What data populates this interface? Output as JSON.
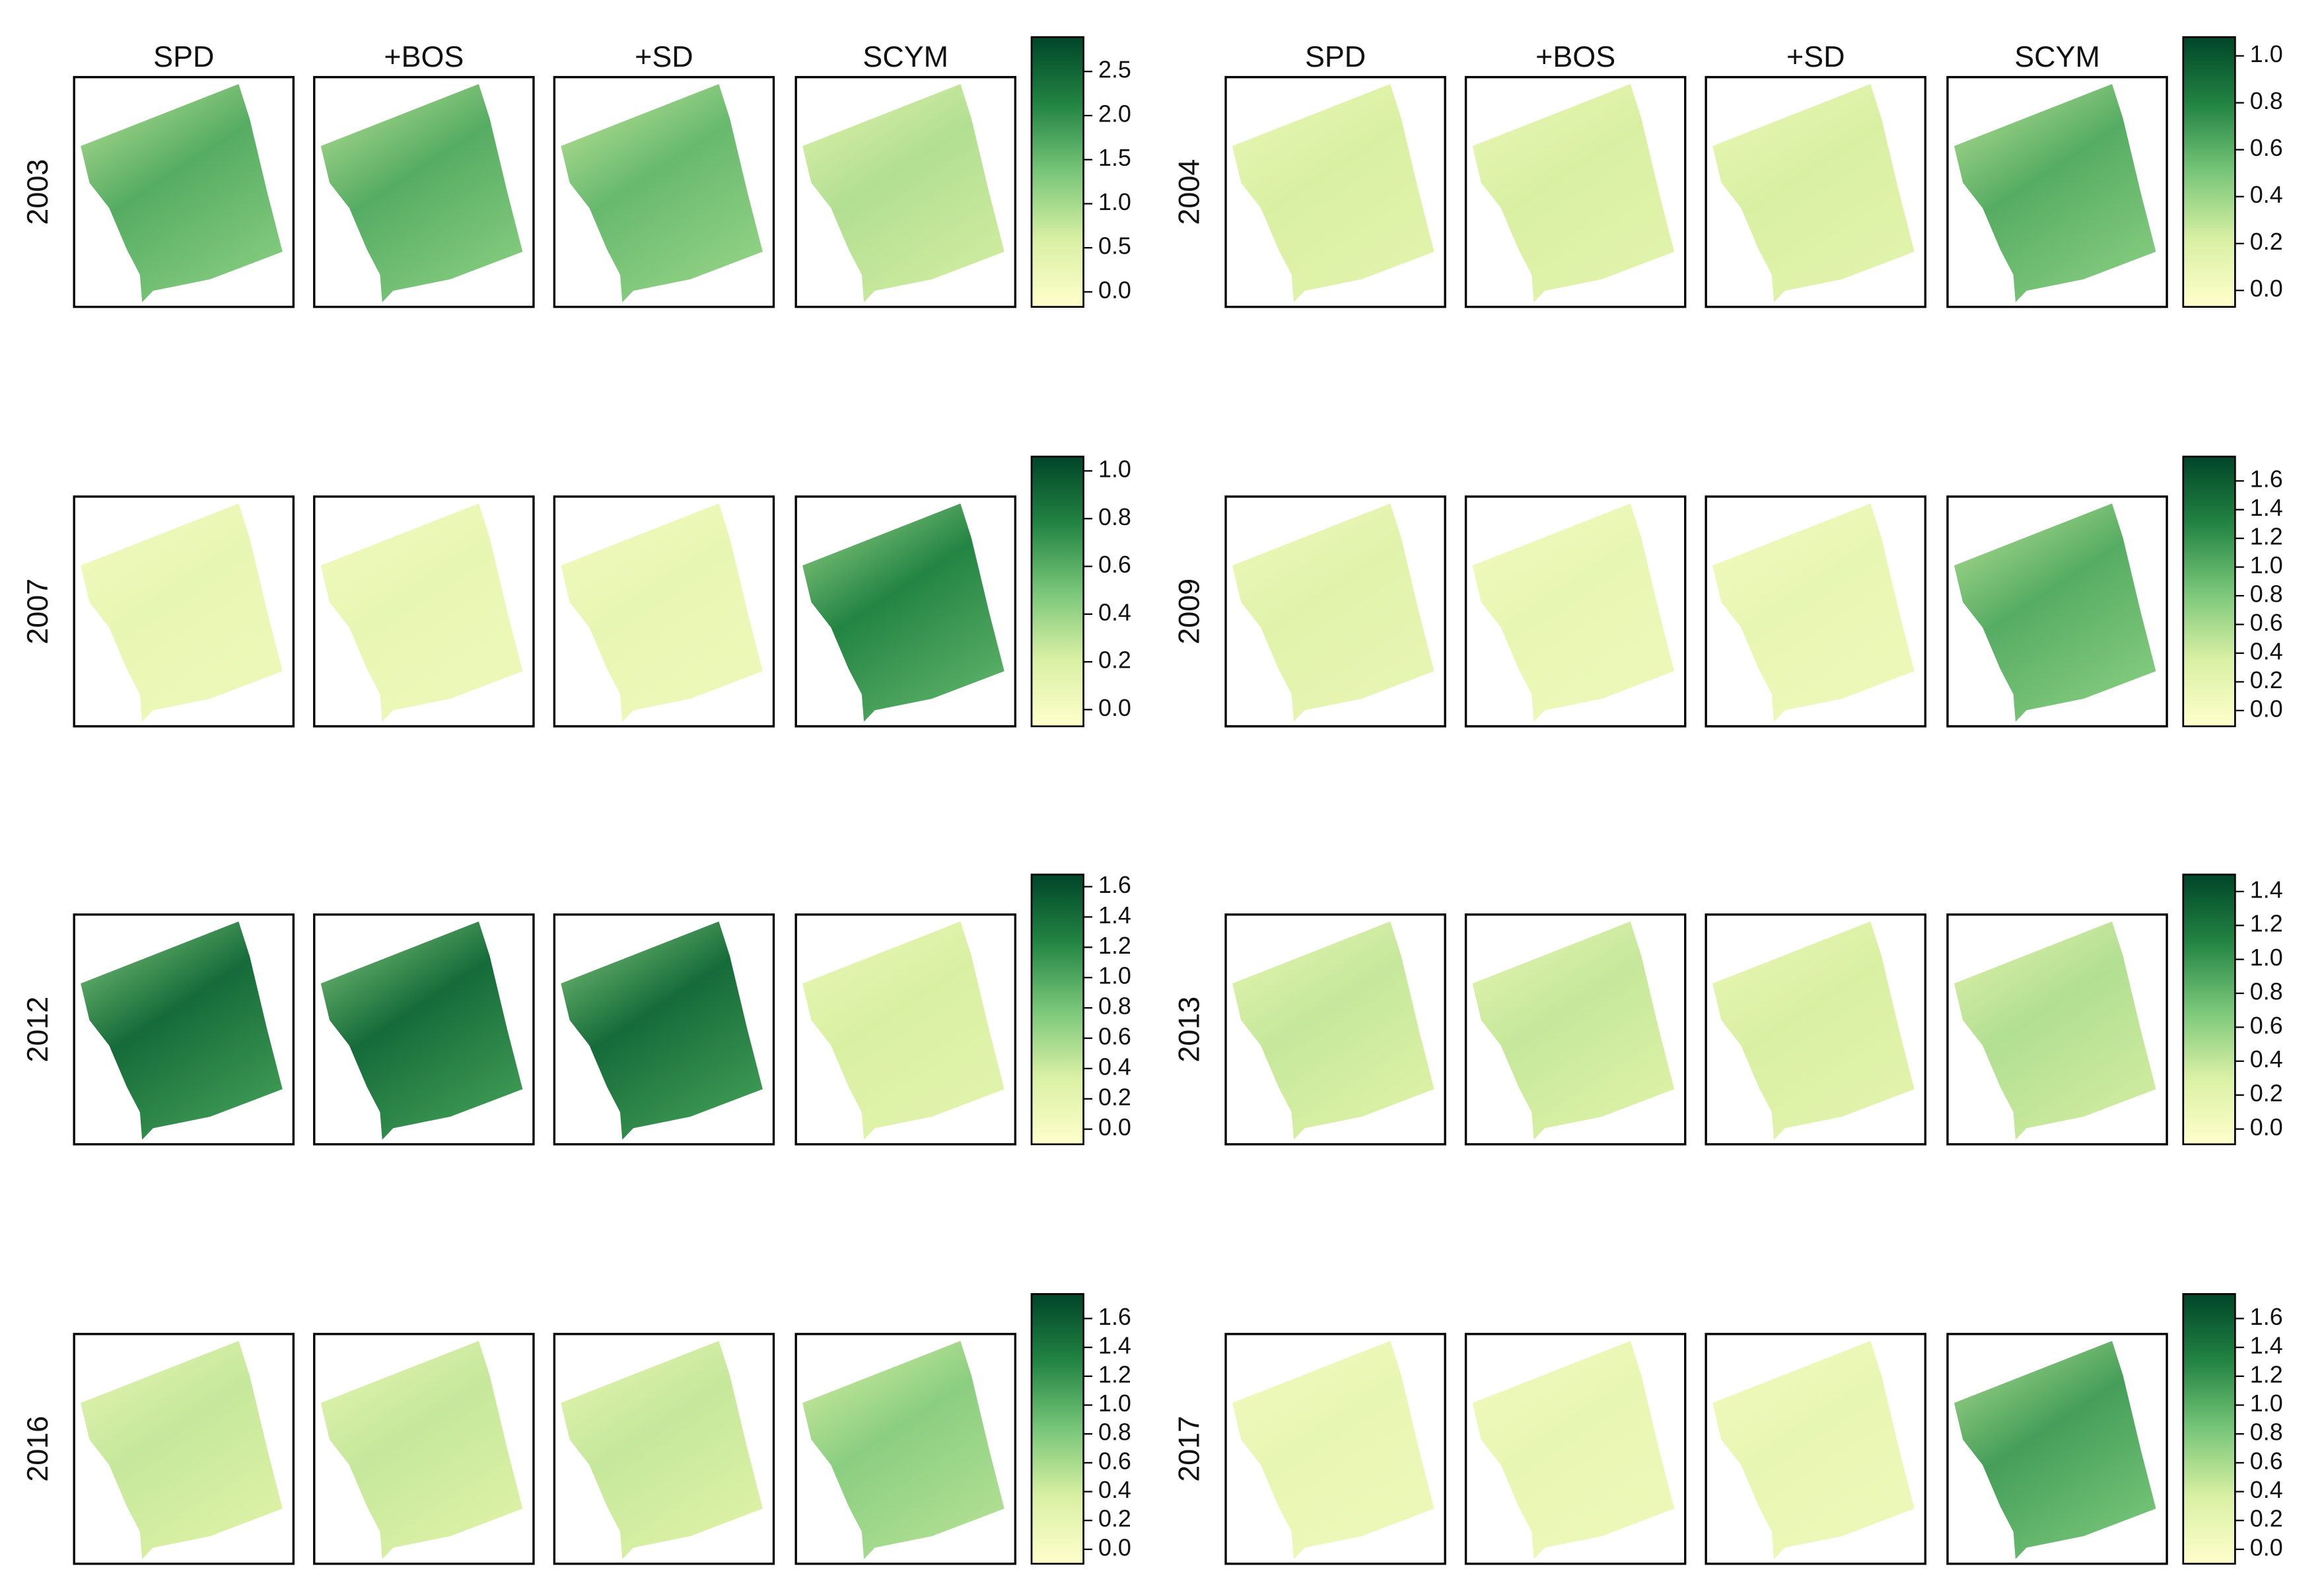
{
  "groups": [
    {
      "column_headers": [
        "SPD",
        "+BOS",
        "+SD",
        "SCYM"
      ],
      "rows": [
        {
          "year": "2003",
          "colorbar": {
            "lim": [
              -0.17,
              2.89
            ],
            "ticks": [
              {
                "value": 0,
                "label": "0.0"
              },
              0.5,
              {
                "value": 1,
                "label": "1.0"
              },
              1.5,
              {
                "value": 2,
                "label": "2.0"
              },
              2.5
            ]
          }
        },
        {
          "year": "2007",
          "colorbar": {
            "lim": [
              -0.07,
              1.06
            ],
            "ticks": [
              {
                "value": 0,
                "label": "0.0"
              },
              0.2,
              0.4,
              0.6,
              0.8,
              {
                "value": 1,
                "label": "1.0"
              }
            ]
          }
        },
        {
          "year": "2012",
          "colorbar": {
            "lim": [
              -0.1,
              1.68
            ],
            "ticks": [
              {
                "value": 0,
                "label": "0.0"
              },
              0.2,
              0.4,
              0.6,
              0.8,
              {
                "value": 1,
                "label": "1.0"
              },
              1.2,
              1.4,
              1.6
            ]
          }
        },
        {
          "year": "2016",
          "colorbar": {
            "lim": [
              -0.1,
              1.77
            ],
            "ticks": [
              {
                "value": 0,
                "label": "0.0"
              },
              0.2,
              0.4,
              0.6,
              0.8,
              {
                "value": 1,
                "label": "1.0"
              },
              1.2,
              1.4,
              1.6
            ]
          }
        }
      ]
    },
    {
      "column_headers": [
        "SPD",
        "+BOS",
        "+SD",
        "SCYM"
      ],
      "rows": [
        {
          "year": "2004",
          "colorbar": {
            "lim": [
              -0.07,
              1.08
            ],
            "ticks": [
              {
                "value": 0,
                "label": "0.0"
              },
              0.2,
              0.4,
              0.6,
              0.8,
              {
                "value": 1,
                "label": "1.0"
              }
            ]
          }
        },
        {
          "year": "2009",
          "colorbar": {
            "lim": [
              -0.11,
              1.77
            ],
            "ticks": [
              {
                "value": 0,
                "label": "0.0"
              },
              0.2,
              0.4,
              0.6,
              0.8,
              {
                "value": 1,
                "label": "1.0"
              },
              1.2,
              1.4,
              1.6
            ]
          }
        },
        {
          "year": "2013",
          "colorbar": {
            "lim": [
              -0.09,
              1.5
            ],
            "ticks": [
              {
                "value": 0,
                "label": "0.0"
              },
              0.2,
              0.4,
              0.6,
              0.8,
              {
                "value": 1,
                "label": "1.0"
              },
              1.2,
              1.4
            ]
          }
        },
        {
          "year": "2017",
          "colorbar": {
            "lim": [
              -0.1,
              1.77
            ],
            "ticks": [
              {
                "value": 0,
                "label": "0.0"
              },
              0.2,
              0.4,
              0.6,
              0.8,
              {
                "value": 1,
                "label": "1.0"
              },
              1.2,
              1.4,
              1.6
            ]
          }
        }
      ]
    }
  ]
}
